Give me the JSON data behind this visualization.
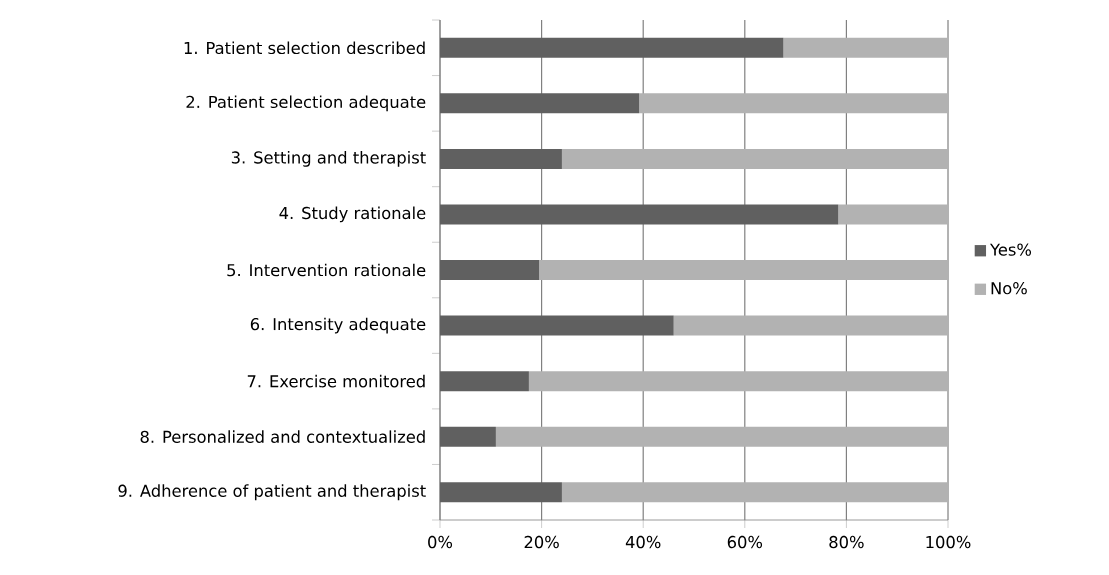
{
  "chart_data": {
    "type": "bar",
    "orientation": "horizontal",
    "stacked": true,
    "categories": [
      "1. Patient selection described",
      "2. Patient selection adequate",
      "3. Setting and therapist",
      "4. Study rationale",
      "5. Intervention rationale",
      "6. Intensity adequate",
      "7. Exercise monitored",
      "8. Personalized and contextualized",
      "9. Adherence of patient and therapist"
    ],
    "series": [
      {
        "name": "Yes%",
        "color": "#606060",
        "values": [
          67.6,
          39.2,
          24.0,
          78.4,
          19.5,
          46.0,
          17.5,
          11.0,
          24.0
        ]
      },
      {
        "name": "No%",
        "color": "#b2b2b2",
        "values": [
          32.4,
          60.8,
          76.0,
          21.6,
          80.5,
          54.0,
          82.5,
          89.0,
          76.0
        ]
      }
    ],
    "xlim": [
      0,
      100
    ],
    "xticks": [
      {
        "value": 0,
        "label": "0%"
      },
      {
        "value": 20,
        "label": "20%"
      },
      {
        "value": 40,
        "label": "40%"
      },
      {
        "value": 60,
        "label": "60%"
      },
      {
        "value": 80,
        "label": "80%"
      },
      {
        "value": 100,
        "label": "100%"
      }
    ],
    "grid": "x",
    "legend": "right"
  }
}
